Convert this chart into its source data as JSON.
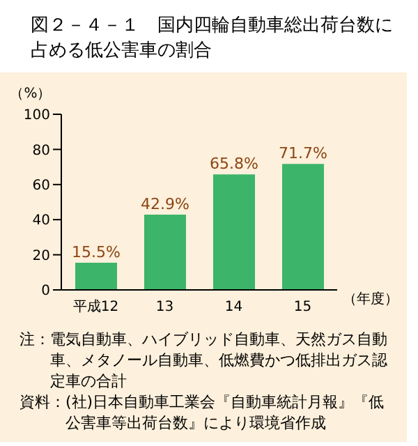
{
  "chart_data": {
    "type": "bar",
    "title": "図２－４－１　国内四輪自動車総出荷台数に占める低公害車の割合",
    "xlabel": "（年度）",
    "ylabel": "（%）",
    "categories": [
      "平成12",
      "13",
      "14",
      "15"
    ],
    "values": [
      15.5,
      42.9,
      65.8,
      71.7
    ],
    "value_labels": [
      "15.5%",
      "42.9%",
      "65.8%",
      "71.7%"
    ],
    "color": "#3cb56a",
    "ylim": [
      0,
      100
    ],
    "yticks": [
      0,
      20,
      40,
      60,
      80,
      100
    ],
    "grid": false,
    "annotations": [
      "注：電気自動車、ハイブリッド自動車、天然ガス自動車、メタノール自動車、低燃費かつ低排出ガス認定車の合計",
      "資料：(社)日本自動車工業会『自動車統計月報』『低公害車等出荷台数』により環境省作成"
    ]
  }
}
